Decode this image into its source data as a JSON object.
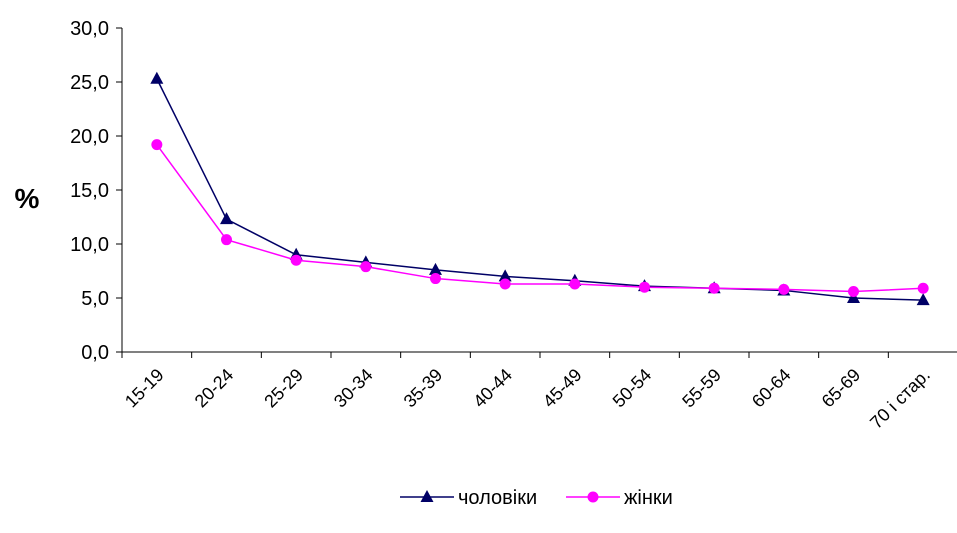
{
  "chart_data": {
    "type": "line",
    "categories": [
      "15-19",
      "20-24",
      "25-29",
      "30-34",
      "35-39",
      "40-44",
      "45-49",
      "50-54",
      "55-59",
      "60-64",
      "65-69",
      "70  і стар."
    ],
    "series": [
      {
        "name": "чоловіки",
        "color": "#000066",
        "marker": "triangle",
        "values": [
          25.3,
          12.3,
          9.0,
          8.3,
          7.6,
          7.0,
          6.6,
          6.1,
          5.9,
          5.7,
          5.0,
          4.8
        ]
      },
      {
        "name": "жінки",
        "color": "#ff00ff",
        "marker": "circle",
        "values": [
          19.2,
          10.4,
          8.5,
          7.9,
          6.8,
          6.3,
          6.3,
          6.0,
          5.9,
          5.8,
          5.6,
          5.9
        ]
      }
    ],
    "ylabel": "%",
    "xlabel": "",
    "ylim": [
      0,
      30
    ],
    "yticks": [
      "0,0",
      "5,0",
      "10,0",
      "15,0",
      "20,0",
      "25,0",
      "30,0"
    ],
    "grid": false,
    "legend": "bottom"
  }
}
